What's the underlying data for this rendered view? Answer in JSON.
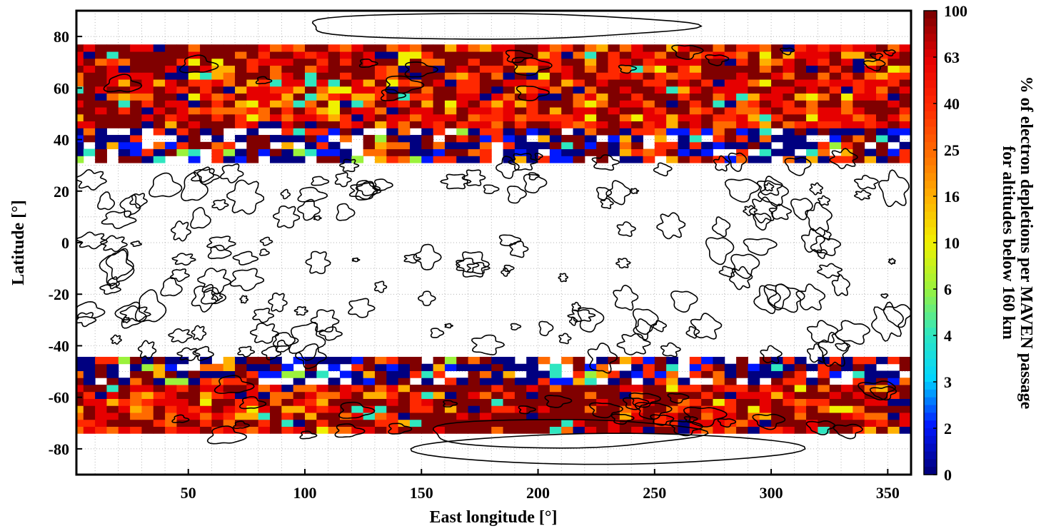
{
  "chart_data": {
    "type": "heatmap",
    "title": "",
    "xlabel": "East longitude [°]",
    "ylabel": "Latitude [°]",
    "colorbar_label_line1": "% of electron depletions per MAVEN passage",
    "colorbar_label_line2": "for altitudes below 160 km",
    "xlim": [
      2,
      360
    ],
    "ylim": [
      -90,
      90
    ],
    "x_ticks": [
      50,
      100,
      150,
      200,
      250,
      300,
      350
    ],
    "y_ticks": [
      80,
      60,
      40,
      20,
      0,
      -20,
      -40,
      -60,
      -80
    ],
    "colorbar_ticks": [
      "100",
      "63",
      "40",
      "25",
      "16",
      "10",
      "6",
      "4",
      "3",
      "2",
      "0"
    ],
    "colorbar_range": [
      0,
      100
    ],
    "colorbar_scale": "nonlinear",
    "grid": true,
    "cell_size_deg": {
      "lon": 5,
      "lat": 2.7
    },
    "bands": [
      {
        "name": "north",
        "lat_range": [
          31,
          76
        ],
        "summary": "mostly 40-100% (red/dark red) at 45-76°N, mixed with 0-2% (blue) and no-data gaps at 31-45°N"
      },
      {
        "name": "south",
        "lat_range": [
          -74,
          -46
        ],
        "summary": "mostly 40-100% (red/dark red) at 55-74°S, mixed with 0-2% (blue) and gaps at 46-55°S; highest values near 150-240°E"
      }
    ],
    "overlay": "crustal magnetic field contours (black lines)"
  },
  "colors": {
    "c0": "#000080",
    "c2": "#0018ff",
    "c3": "#00d4ff",
    "c4": "#2fe6c0",
    "c6": "#9bf23c",
    "c10": "#f0f000",
    "c16": "#ffb000",
    "c25": "#ff6a00",
    "c40": "#ff2800",
    "c63": "#e60000",
    "c100": "#800000"
  }
}
